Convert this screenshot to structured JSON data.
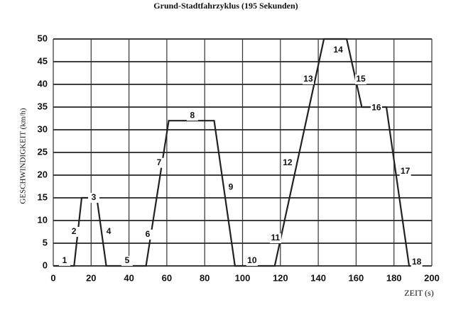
{
  "chart_data": {
    "type": "line",
    "title": "Grund-Stadtfahrzyklus (195 Sekunden)",
    "y_label": "GESCHWINDIGKEIT (km/h)",
    "x_label": "ZEIT (s)",
    "x": [
      0,
      11,
      15,
      23,
      28,
      49,
      61,
      85,
      96,
      117,
      143,
      155,
      163,
      176,
      188,
      195
    ],
    "series": [
      {
        "color": "#222222",
        "values": [
          0,
          0,
          15,
          15,
          0,
          0,
          32,
          32,
          0,
          0,
          50,
          50,
          35,
          35,
          0,
          0
        ]
      }
    ],
    "annotations": [
      "1",
      "2",
      "3",
      "4",
      "5",
      "6",
      "7",
      "8",
      "9",
      "10",
      "11",
      "12",
      "13",
      "14",
      "15",
      "16",
      "17",
      "18"
    ],
    "xlim": [
      0,
      200
    ],
    "xticks": [
      0,
      20,
      40,
      60,
      80,
      100,
      120,
      140,
      160,
      180,
      200
    ],
    "ylim": [
      0,
      50
    ],
    "yticks": [
      0,
      5,
      10,
      15,
      20,
      25,
      30,
      35,
      40,
      45,
      50
    ],
    "grid": true
  }
}
